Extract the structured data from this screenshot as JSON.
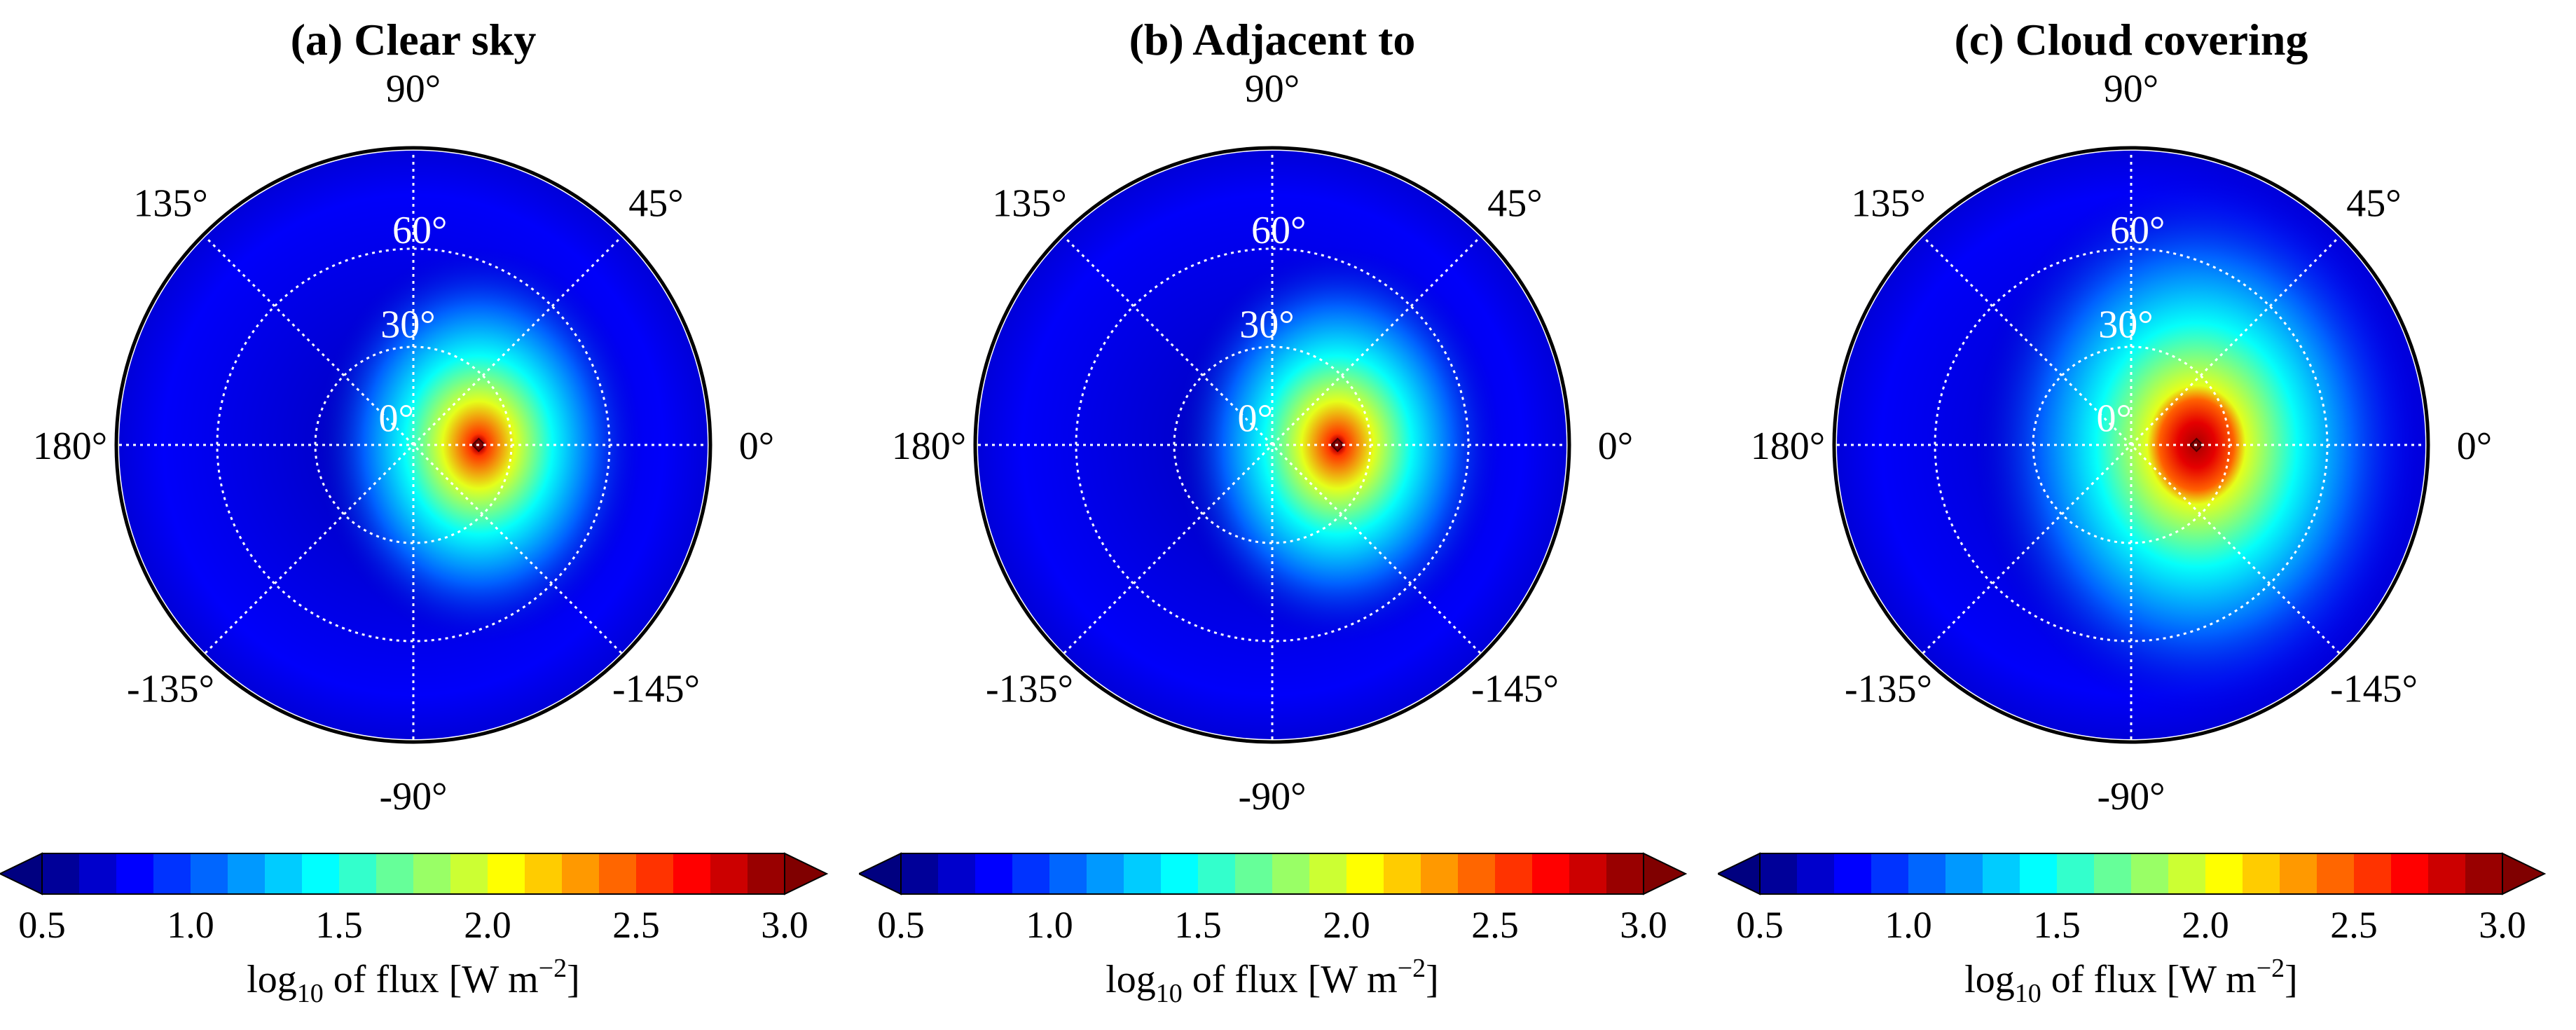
{
  "chart_data": [
    {
      "type": "heatmap",
      "projection": "polar",
      "title": "(a) Clear sky",
      "theta_ticks": [
        "90°",
        "45°",
        "0°",
        "-145°",
        "-90°",
        "-135°",
        "180°",
        "135°"
      ],
      "r_ticks": [
        "0°",
        "30°",
        "60°"
      ],
      "colorbar": {
        "label_prefix": "log",
        "label_sub": "10",
        "label_mid": " of flux [W m",
        "label_sup": "−2",
        "label_end": "]",
        "ticks": [
          "0.5",
          "1.0",
          "1.5",
          "2.0",
          "2.5",
          "3.0"
        ],
        "range": [
          0.5,
          3.0
        ],
        "extend": "both",
        "colormap": "jet"
      },
      "hotspot": {
        "azimuth_deg": 0,
        "zenith_deg": 20,
        "peak_log10_flux": 3.0,
        "core_radius_deg": 3,
        "halo_radius_deg": 22,
        "halo_level_log10_flux": 2.0
      },
      "background_log10_flux": 0.7
    },
    {
      "type": "heatmap",
      "projection": "polar",
      "title": "(b) Adjacent to",
      "theta_ticks": [
        "90°",
        "45°",
        "0°",
        "-145°",
        "-90°",
        "-135°",
        "180°",
        "135°"
      ],
      "r_ticks": [
        "0°",
        "30°",
        "60°"
      ],
      "colorbar": {
        "label_prefix": "log",
        "label_sub": "10",
        "label_mid": " of flux [W m",
        "label_sup": "−2",
        "label_end": "]",
        "ticks": [
          "0.5",
          "1.0",
          "1.5",
          "2.0",
          "2.5",
          "3.0"
        ],
        "range": [
          0.5,
          3.0
        ],
        "extend": "both",
        "colormap": "jet"
      },
      "hotspot": {
        "azimuth_deg": 0,
        "zenith_deg": 20,
        "peak_log10_flux": 3.0,
        "core_radius_deg": 3,
        "halo_radius_deg": 22,
        "halo_level_log10_flux": 2.0
      },
      "background_log10_flux": 0.7
    },
    {
      "type": "heatmap",
      "projection": "polar",
      "title": "(c) Cloud covering",
      "theta_ticks": [
        "90°",
        "45°",
        "0°",
        "-145°",
        "-90°",
        "-135°",
        "180°",
        "135°"
      ],
      "r_ticks": [
        "0°",
        "30°",
        "60°"
      ],
      "colorbar": {
        "label_prefix": "log",
        "label_sub": "10",
        "label_mid": " of flux [W m",
        "label_sup": "−2",
        "label_end": "]",
        "ticks": [
          "0.5",
          "1.0",
          "1.5",
          "2.0",
          "2.5",
          "3.0"
        ],
        "range": [
          0.5,
          3.0
        ],
        "extend": "both",
        "colormap": "jet"
      },
      "hotspot": {
        "azimuth_deg": 0,
        "zenith_deg": 20,
        "peak_log10_flux": 2.9,
        "core_radius_deg": 12,
        "halo_radius_deg": 30,
        "halo_level_log10_flux": 2.0
      },
      "background_log10_flux": 0.7
    }
  ]
}
